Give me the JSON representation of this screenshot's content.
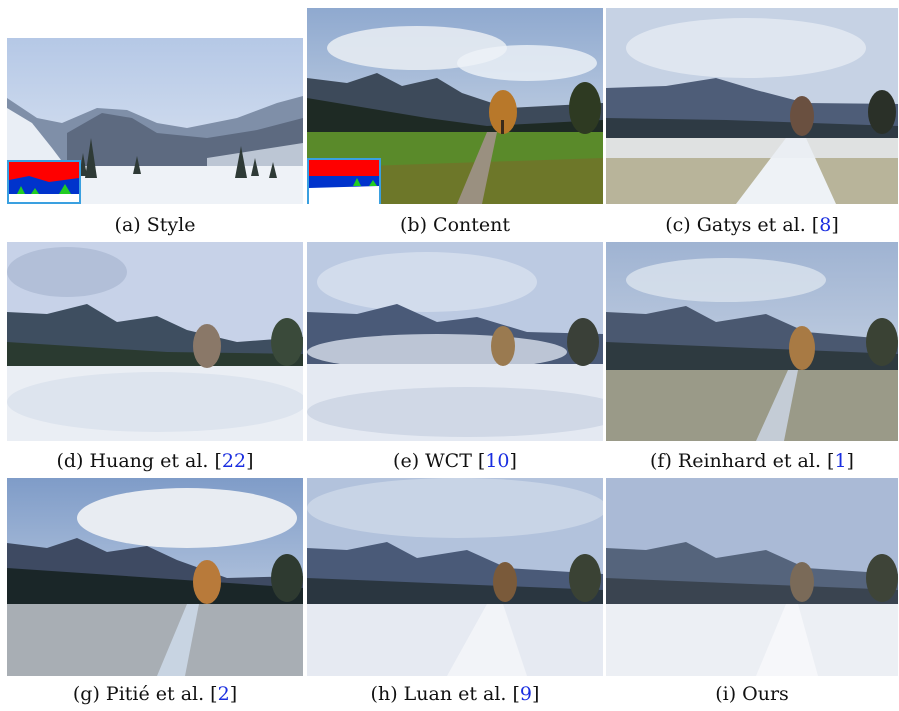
{
  "figure": {
    "panels": [
      {
        "id": "a",
        "caption_prefix": "(a) Style",
        "ref": "",
        "caption_suffix": "",
        "scene": "winter-style",
        "has_mask": true
      },
      {
        "id": "b",
        "caption_prefix": "(b) Content",
        "ref": "",
        "caption_suffix": "",
        "scene": "autumn-content",
        "has_mask": true
      },
      {
        "id": "c",
        "caption_prefix": "(c) Gatys et al. [",
        "ref": "8",
        "caption_suffix": "]",
        "scene": "gatys"
      },
      {
        "id": "d",
        "caption_prefix": "(d) Huang et al. [",
        "ref": "22",
        "caption_suffix": "]",
        "scene": "huang"
      },
      {
        "id": "e",
        "caption_prefix": "(e) WCT [",
        "ref": "10",
        "caption_suffix": "]",
        "scene": "wct"
      },
      {
        "id": "f",
        "caption_prefix": "(f) Reinhard et al. [",
        "ref": "1",
        "caption_suffix": "]",
        "scene": "reinhard"
      },
      {
        "id": "g",
        "caption_prefix": "(g) Pitié et al. [",
        "ref": "2",
        "caption_suffix": "]",
        "scene": "pitie"
      },
      {
        "id": "h",
        "caption_prefix": "(h) Luan et al. [",
        "ref": "9",
        "caption_suffix": "]",
        "scene": "luan"
      },
      {
        "id": "i",
        "caption_prefix": "(i) Ours",
        "ref": "",
        "caption_suffix": "",
        "scene": "ours"
      }
    ],
    "colors": {
      "reference_link": "#1a2ee0",
      "mask_border": "#3aa0e0",
      "mask_sky": "#ff0000",
      "mask_mountain": "#0033cc",
      "mask_tree": "#22cc22",
      "mask_ground": "#ffffff"
    }
  }
}
